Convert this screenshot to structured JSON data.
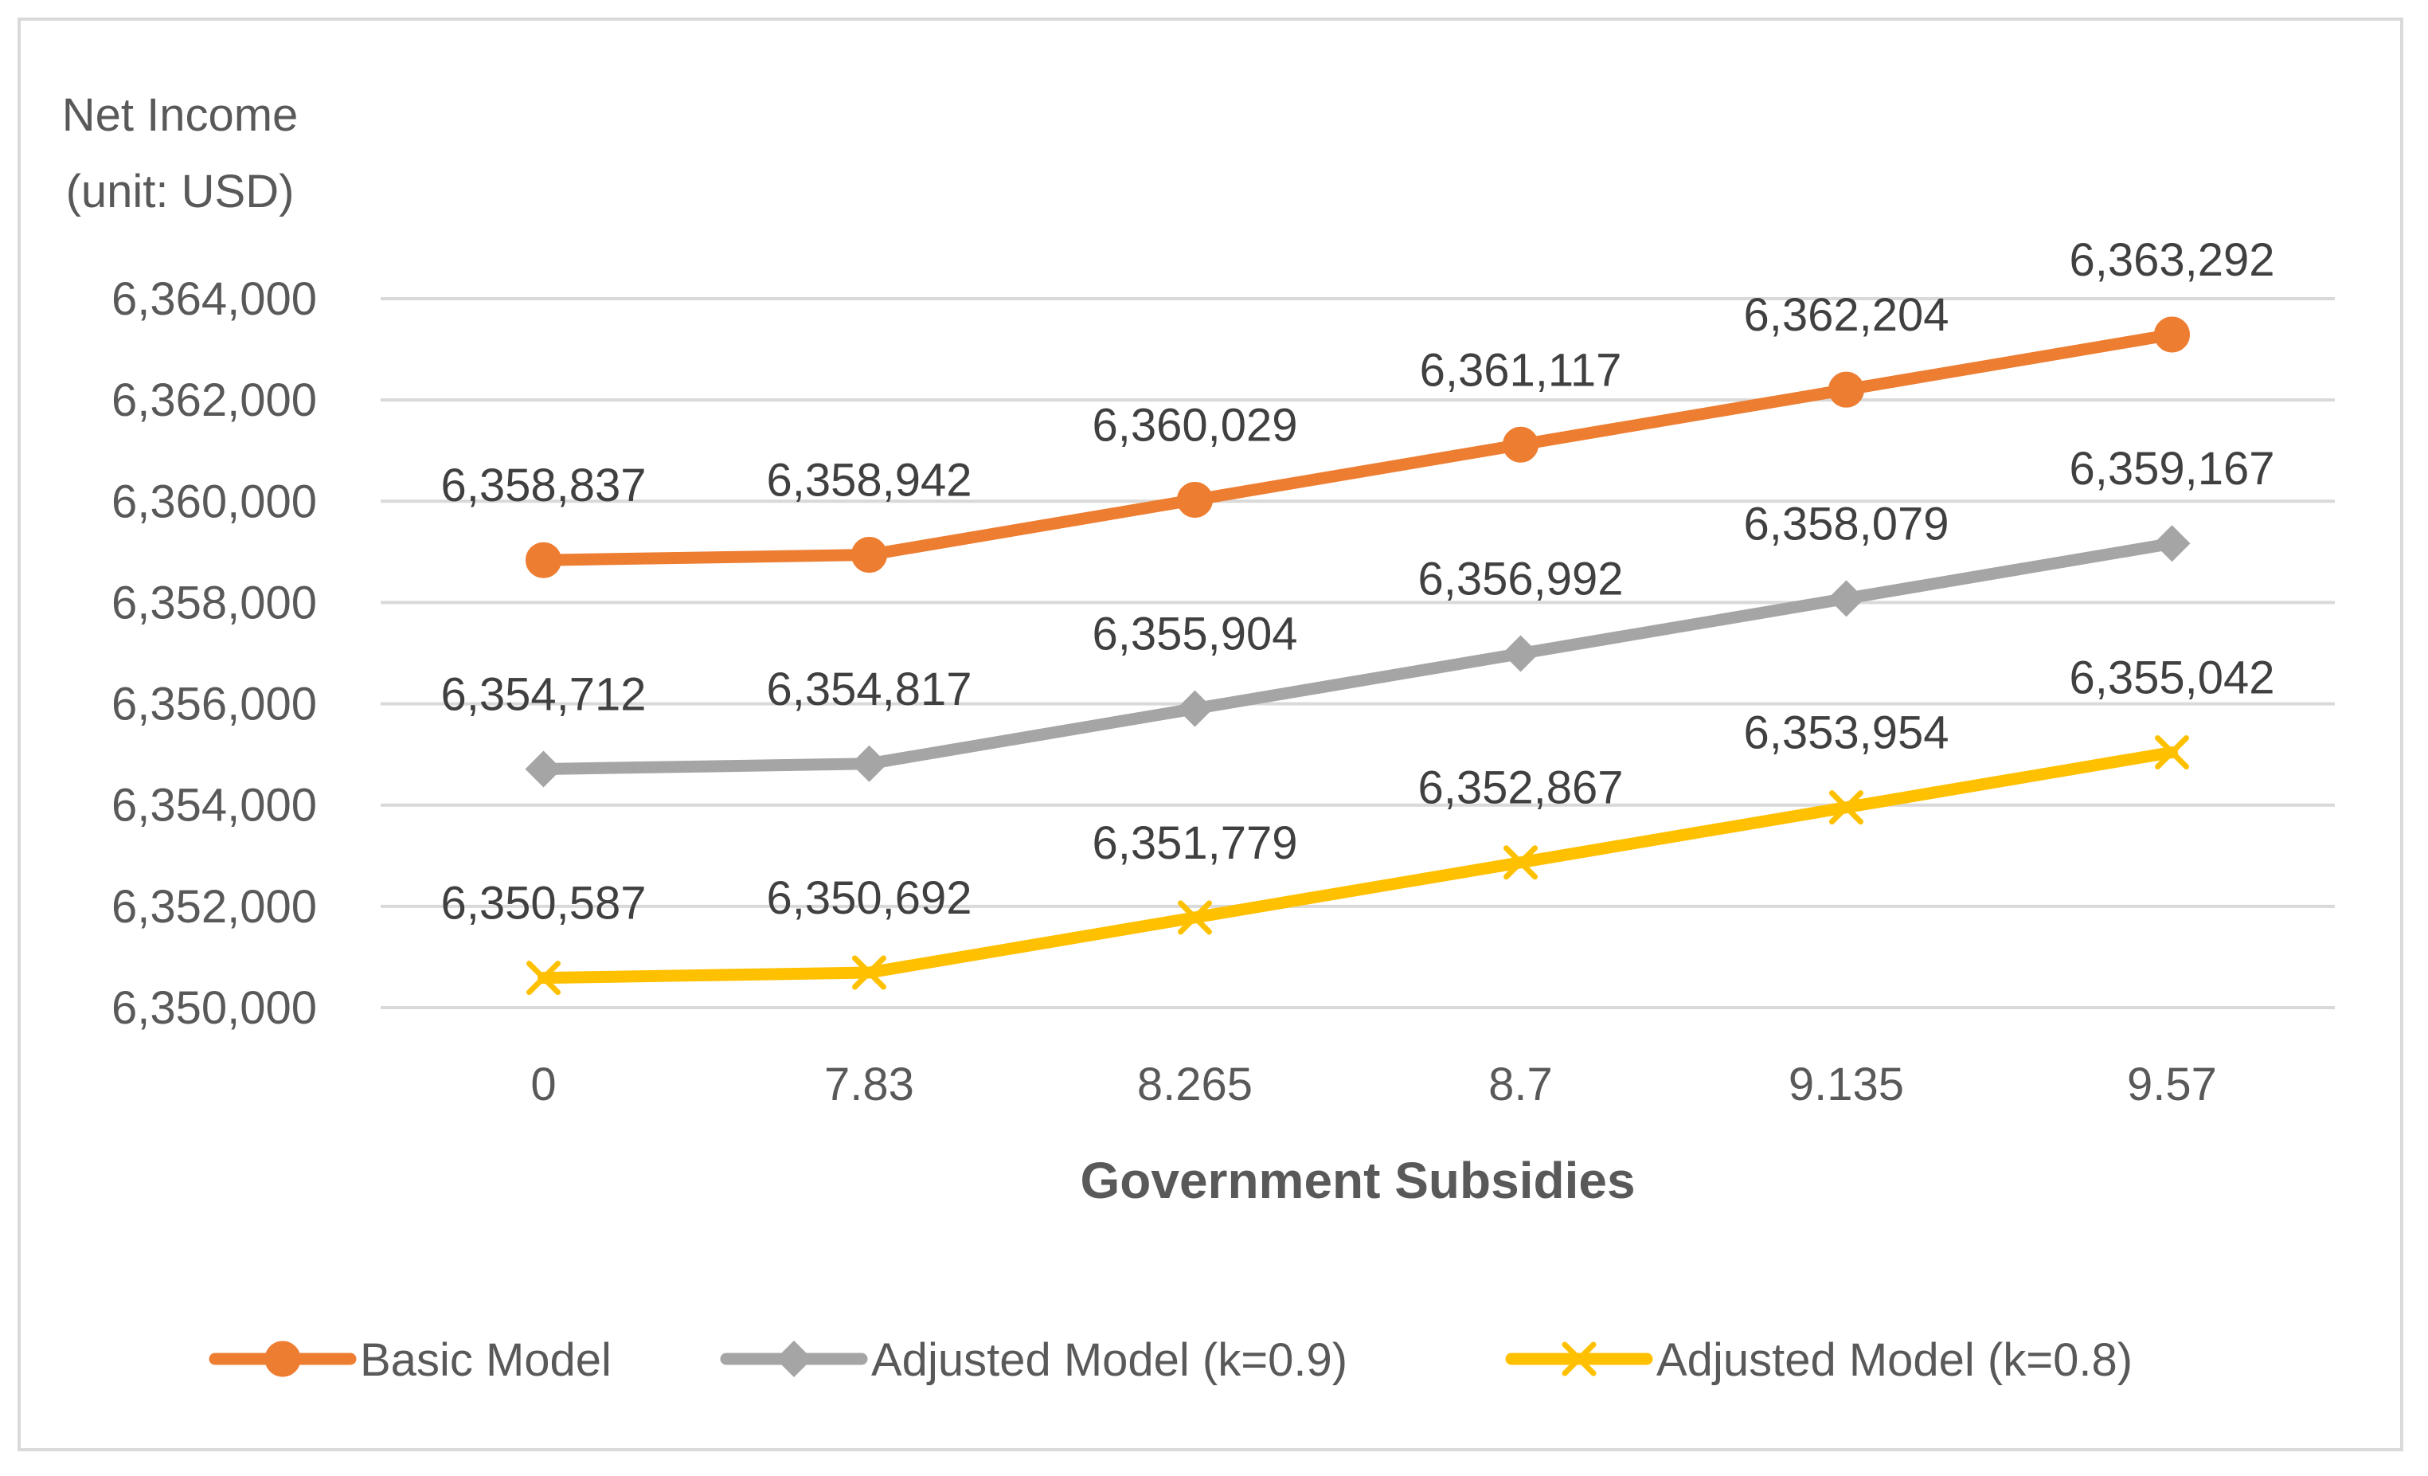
{
  "chart_data": {
    "type": "line",
    "ylabel_lines": [
      "Net Income",
      "(unit: USD)"
    ],
    "xlabel": "Government Subsidies",
    "categories": [
      "0",
      "7.83",
      "8.265",
      "8.7",
      "9.135",
      "9.57"
    ],
    "ylim": [
      6350000,
      6364000
    ],
    "yticks": [
      6350000,
      6352000,
      6354000,
      6356000,
      6358000,
      6360000,
      6362000,
      6364000
    ],
    "ytick_labels": [
      "6,350,000",
      "6,352,000",
      "6,354,000",
      "6,356,000",
      "6,358,000",
      "6,360,000",
      "6,362,000",
      "6,364,000"
    ],
    "grid": true,
    "legend_position": "bottom",
    "series": [
      {
        "name": "Basic Model",
        "color": "#ed7d31",
        "marker": "circle",
        "values": [
          6358837,
          6358942,
          6360029,
          6361117,
          6362204,
          6363292
        ],
        "labels": [
          "6,358,837",
          "6,358,942",
          "6,360,029",
          "6,361,117",
          "6,362,204",
          "6,363,292"
        ]
      },
      {
        "name": "Adjusted Model (k=0.9)",
        "color": "#a5a5a5",
        "marker": "diamond",
        "values": [
          6354712,
          6354817,
          6355904,
          6356992,
          6358079,
          6359167
        ],
        "labels": [
          "6,354,712",
          "6,354,817",
          "6,355,904",
          "6,356,992",
          "6,358,079",
          "6,359,167"
        ]
      },
      {
        "name": "Adjusted Model (k=0.8)",
        "color": "#ffc000",
        "marker": "x",
        "values": [
          6350587,
          6350692,
          6351779,
          6352867,
          6353954,
          6355042
        ],
        "labels": [
          "6,350,587",
          "6,350,692",
          "6,351,779",
          "6,352,867",
          "6,353,954",
          "6,355,042"
        ]
      }
    ]
  }
}
